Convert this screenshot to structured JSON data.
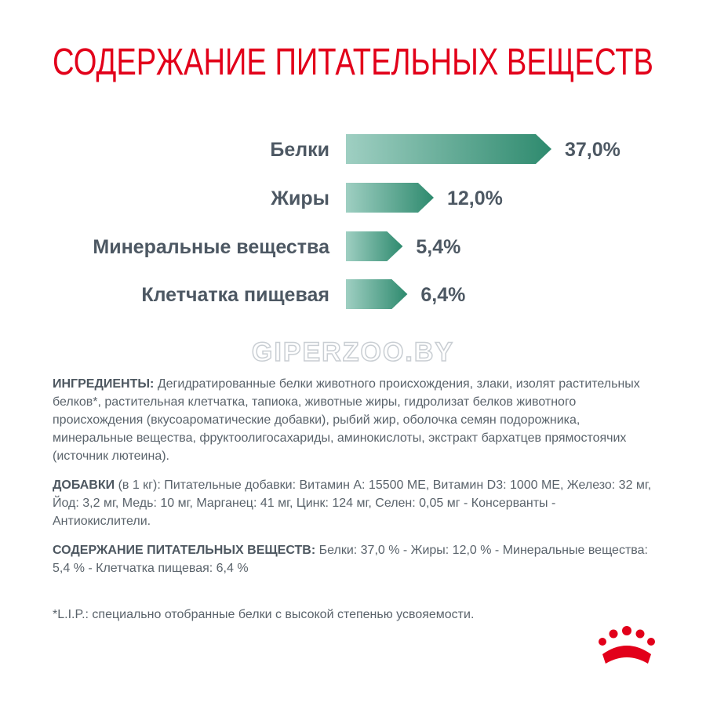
{
  "chart_data": {
    "type": "bar",
    "title": "СОДЕРЖАНИЕ ПИТАТЕЛЬНЫХ ВЕЩЕСТВ",
    "categories": [
      "Белки",
      "Жиры",
      "Минеральные вещества",
      "Клетчатка пищевая"
    ],
    "values": [
      37.0,
      12.0,
      5.4,
      6.4
    ],
    "value_labels": [
      "37,0%",
      "12,0%",
      "5,4%",
      "6,4%"
    ],
    "color": "#2e8a6e"
  },
  "watermark": "GIPERZOO.BY",
  "sections": [
    {
      "label": "ИНГРЕДИЕНТЫ:",
      "text": "Дегидратированные белки животного происхождения, злаки, изолят растительных белков*, растительная клетчатка, тапиока, животные жиры, гидролизат белков животного происхождения (вкусоароматические добавки), рыбий жир, оболочка семян подорожника, минеральные вещества, фруктоолигосахариды, аминокислоты, экстракт бархатцев прямостоячих (источник лютеина)."
    },
    {
      "label": "ДОБАВКИ",
      "text": "(в 1 кг): Питательные добавки: Витамин А: 15500 МЕ, Витамин D3: 1000 МЕ, Железо: 32 мг, Йод: 3,2 мг, Медь: 10 мг, Марганец: 41 мг, Цинк: 124 мг, Селен: 0,05 мг - Консерванты - Антиокислители."
    },
    {
      "label": "СОДЕРЖАНИЕ ПИТАТЕЛЬНЫХ ВЕЩЕСТВ:",
      "text": "Белки: 37,0 % - Жиры: 12,0 % - Минеральные вещества: 5,4 % - Клетчатка пищевая: 6,4 %"
    }
  ],
  "footnote": "*L.I.P.: специально отобранные белки с высокой степенью усвояемости."
}
